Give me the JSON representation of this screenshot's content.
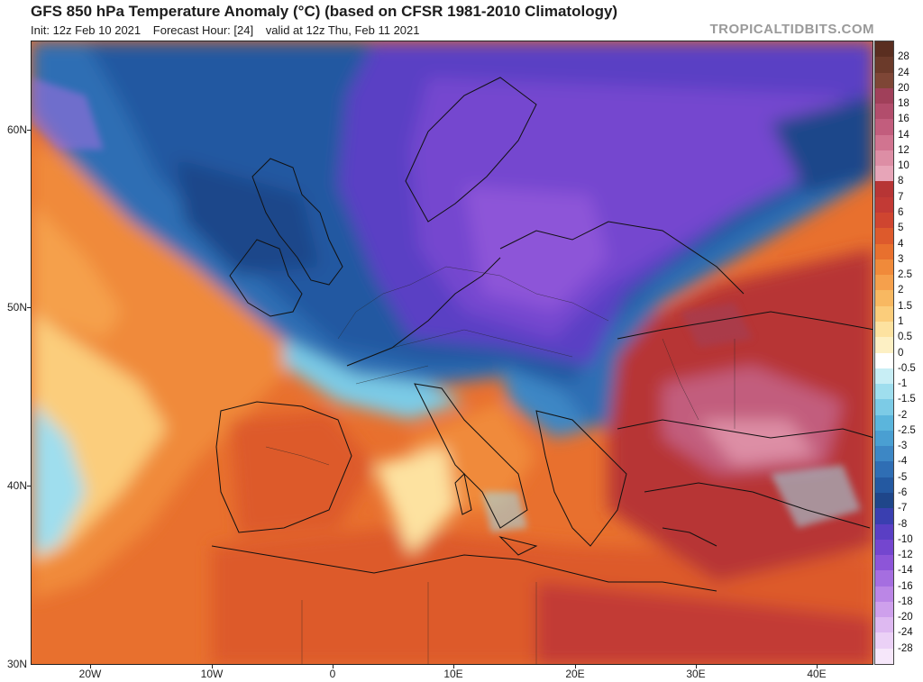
{
  "header": {
    "title": "GFS 850 hPa Temperature Anomaly (°C) (based on CFSR 1981-2010 Climatology)",
    "init": "Init: 12z Feb 10 2021",
    "forecast_hour": "Forecast Hour: [24]",
    "valid": "valid at 12z Thu, Feb 11 2021",
    "brand": "TROPICALTIDBITS.COM"
  },
  "axes": {
    "lat_labels": [
      "60N",
      "50N",
      "40N",
      "30N"
    ],
    "lon_labels": [
      "20W",
      "10W",
      "0",
      "10E",
      "20E",
      "30E",
      "40E"
    ]
  },
  "colorbar": {
    "labels": [
      "28",
      "24",
      "20",
      "18",
      "16",
      "14",
      "12",
      "10",
      "8",
      "7",
      "6",
      "5",
      "4",
      "3",
      "2.5",
      "2",
      "1.5",
      "1",
      "0.5",
      "0",
      "-0.5",
      "-1",
      "-1.5",
      "-2",
      "-2.5",
      "-3",
      "-4",
      "-5",
      "-6",
      "-7",
      "-8",
      "-10",
      "-12",
      "-14",
      "-16",
      "-18",
      "-20",
      "-24",
      "-28"
    ],
    "colors": [
      "#6b3a2a",
      "#7e4636",
      "#a0405a",
      "#b24d6c",
      "#c25d7d",
      "#d17490",
      "#dd8ea5",
      "#e7a5b8",
      "#b73535",
      "#c23a35",
      "#cf4530",
      "#dd5a2c",
      "#e8702e",
      "#f08a3a",
      "#f5a04c",
      "#f8b861",
      "#fbcd7b",
      "#fde2a0",
      "#fdf0c4",
      "#ffffff",
      "#c8eef5",
      "#9fdeee",
      "#7ccbe6",
      "#5bb5dc",
      "#4a9fd2",
      "#3d87c5",
      "#2f6eb4",
      "#2459a1",
      "#1f468a",
      "#3a3fb0",
      "#5a3fc4",
      "#7446cf",
      "#8d55d8",
      "#a56ee0",
      "#bb86e6",
      "#cea0ec",
      "#deb9f1",
      "#ebd1f6",
      "#f6e7fa"
    ]
  }
}
